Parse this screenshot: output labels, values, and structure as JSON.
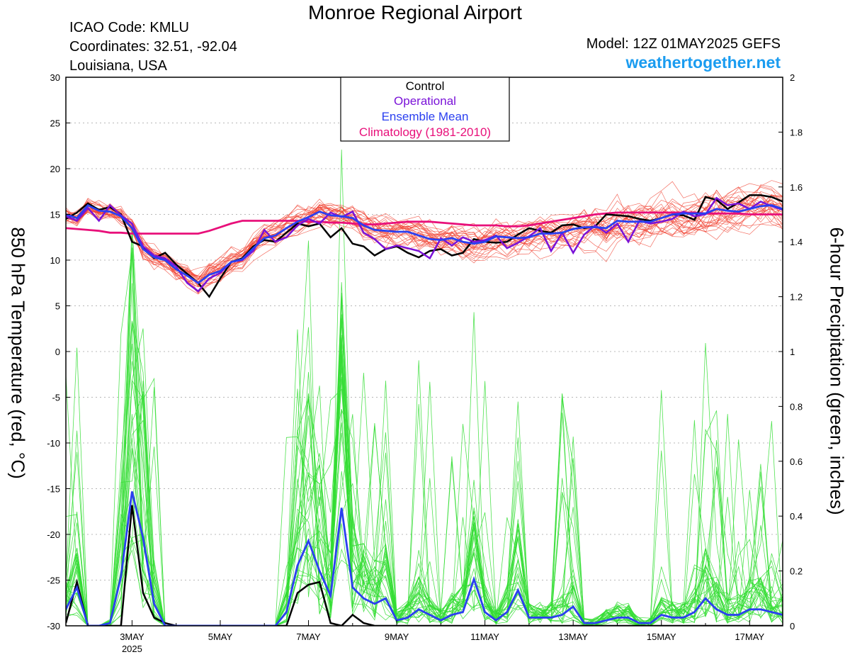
{
  "header": {
    "title": "Monroe Regional Airport",
    "icao": "ICAO Code: KMLU",
    "coords": "Coordinates: 32.51, -92.04",
    "region": "Louisiana, USA",
    "model": "Model: 12Z 01MAY2025 GEFS",
    "site": "weathertogether.net"
  },
  "colors": {
    "control": "#000000",
    "operational": "#7a12d8",
    "ensemble_mean": "#2a3ff0",
    "climatology": "#e8107a",
    "members_temp": "#f04030",
    "members_precip": "#33dd33",
    "site": "#1a9cf0"
  },
  "chart_data": {
    "type": "line",
    "ylabel_left": "850 hPa Temperature (red, °C)",
    "ylabel_right": "6-hour Precipitation (green, inches)",
    "y_left_range": [
      -30,
      30
    ],
    "y_left_ticks": [
      "30",
      "25",
      "20",
      "15",
      "10",
      "5",
      "0",
      "-5",
      "-10",
      "-15",
      "-20",
      "-25",
      "-30"
    ],
    "y_right_range": [
      0,
      2
    ],
    "y_right_ticks": [
      "2",
      "1.8",
      "1.6",
      "1.4",
      "1.2",
      "1",
      "0.8",
      "0.6",
      "0.4",
      "0.2",
      "0"
    ],
    "x_range_days": [
      1.5,
      17.75
    ],
    "x_ticks": [
      {
        "day": 3,
        "label": "3MAY",
        "sub": "2025"
      },
      {
        "day": 5,
        "label": "5MAY",
        "sub": ""
      },
      {
        "day": 7,
        "label": "7MAY",
        "sub": ""
      },
      {
        "day": 9,
        "label": "9MAY",
        "sub": ""
      },
      {
        "day": 11,
        "label": "11MAY",
        "sub": ""
      },
      {
        "day": 13,
        "label": "13MAY",
        "sub": ""
      },
      {
        "day": 15,
        "label": "15MAY",
        "sub": ""
      },
      {
        "day": 17,
        "label": "17MAY",
        "sub": ""
      }
    ],
    "grid": "dotted horizontal",
    "legend": {
      "placement": "top-center",
      "entries": [
        {
          "label": "Control",
          "series": "control"
        },
        {
          "label": "Operational",
          "series": "operational"
        },
        {
          "label": "Ensemble Mean",
          "series": "ensemble_mean"
        },
        {
          "label": "Climatology (1981-2010)",
          "series": "climatology"
        }
      ]
    },
    "temperature": {
      "day": [
        1.5,
        1.75,
        2.0,
        2.25,
        2.5,
        2.75,
        3.0,
        3.25,
        3.5,
        3.75,
        4.0,
        4.25,
        4.5,
        4.75,
        5.0,
        5.25,
        5.5,
        5.75,
        6.0,
        6.25,
        6.5,
        6.75,
        7.0,
        7.25,
        7.5,
        7.75,
        8.0,
        8.25,
        8.5,
        8.75,
        9.0,
        9.25,
        9.5,
        9.75,
        10.0,
        10.25,
        10.5,
        10.75,
        11.0,
        11.25,
        11.5,
        11.75,
        12.0,
        12.25,
        12.5,
        12.75,
        13.0,
        13.25,
        13.5,
        13.75,
        14.0,
        14.25,
        14.5,
        14.75,
        15.0,
        15.25,
        15.5,
        15.75,
        16.0,
        16.25,
        16.5,
        16.75,
        17.0,
        17.25,
        17.5,
        17.75
      ],
      "control": [
        14.5,
        15.2,
        16.2,
        15.5,
        15.8,
        15.0,
        12.0,
        11.5,
        10.2,
        10.8,
        9.5,
        8.5,
        7.5,
        6.0,
        8.0,
        9.8,
        10.2,
        11.5,
        12.2,
        12.0,
        13.0,
        14.0,
        13.7,
        14.0,
        12.5,
        13.5,
        11.8,
        11.5,
        10.5,
        11.2,
        11.5,
        10.8,
        10.3,
        11.0,
        11.2,
        10.5,
        10.8,
        12.3,
        12.0,
        11.9,
        12.0,
        12.8,
        13.5,
        13.2,
        13.0,
        13.8,
        13.9,
        13.5,
        13.7,
        15.0,
        14.9,
        14.8,
        14.5,
        14.3,
        14.6,
        15.0,
        14.9,
        14.4,
        16.9,
        16.6,
        15.6,
        16.3,
        17.1,
        17.1,
        16.9,
        16.4
      ],
      "operational": [
        14.8,
        14.3,
        15.7,
        14.3,
        16.0,
        14.9,
        14.0,
        11.5,
        10.5,
        10.2,
        9.3,
        7.5,
        6.6,
        8.0,
        8.6,
        9.8,
        10.0,
        11.0,
        13.3,
        12.0,
        12.5,
        13.8,
        14.5,
        14.0,
        15.2,
        14.7,
        15.3,
        13.0,
        12.3,
        11.2,
        11.6,
        11.3,
        11.0,
        10.2,
        12.4,
        11.6,
        12.5,
        12.0,
        12.2,
        12.7,
        11.3,
        11.9,
        12.6,
        13.5,
        11.0,
        13.0,
        10.8,
        12.8,
        13.8,
        13.0,
        14.0,
        12.0,
        14.3,
        14.0,
        14.2,
        14.5,
        15.3,
        14.8,
        15.0,
        16.8,
        16.0,
        16.2,
        15.6,
        16.4,
        15.9,
        15.5
      ],
      "ensemble_mean": [
        15.0,
        14.6,
        16.0,
        15.4,
        15.3,
        14.8,
        13.5,
        11.2,
        10.3,
        10.0,
        9.0,
        8.3,
        7.5,
        8.4,
        8.8,
        9.8,
        10.1,
        11.3,
        12.4,
        12.7,
        13.5,
        14.2,
        14.7,
        15.3,
        14.9,
        14.8,
        14.6,
        13.8,
        13.3,
        13.2,
        13.1,
        13.1,
        12.7,
        12.3,
        12.2,
        12.4,
        12.0,
        11.8,
        12.0,
        12.6,
        12.5,
        12.4,
        12.5,
        12.9,
        12.9,
        13.0,
        13.4,
        13.6,
        13.6,
        13.5,
        14.3,
        14.2,
        14.2,
        14.2,
        14.6,
        15.0,
        15.1,
        15.1,
        15.1,
        15.6,
        15.4,
        15.3,
        15.6,
        15.9,
        16.0,
        15.6
      ],
      "climatology": [
        13.5,
        13.4,
        13.3,
        13.2,
        13.0,
        13.0,
        12.9,
        12.9,
        12.9,
        12.9,
        12.9,
        12.9,
        12.9,
        13.2,
        13.6,
        14.0,
        14.3,
        14.3,
        14.3,
        14.3,
        14.3,
        14.3,
        14.2,
        14.2,
        14.1,
        14.1,
        14.0,
        13.9,
        13.9,
        14.0,
        14.1,
        14.2,
        14.2,
        14.2,
        14.1,
        14.0,
        13.9,
        13.8,
        13.8,
        13.8,
        13.7,
        13.7,
        13.8,
        14.0,
        14.2,
        14.4,
        14.6,
        14.8,
        15.0,
        15.1,
        15.2,
        15.2,
        15.2,
        15.2,
        15.2,
        15.2,
        15.2,
        15.2,
        15.1,
        15.1,
        15.1,
        15.1,
        15.0,
        15.0,
        15.0,
        15.0
      ]
    },
    "precipitation": {
      "day": [
        1.5,
        1.75,
        2.0,
        2.25,
        2.5,
        2.75,
        3.0,
        3.25,
        3.5,
        3.75,
        4.0,
        4.25,
        4.5,
        4.75,
        5.0,
        5.25,
        5.5,
        5.75,
        6.0,
        6.25,
        6.5,
        6.75,
        7.0,
        7.25,
        7.5,
        7.75,
        8.0,
        8.25,
        8.5,
        8.75,
        9.0,
        9.25,
        9.5,
        9.75,
        10.0,
        10.25,
        10.5,
        10.75,
        11.0,
        11.25,
        11.5,
        11.75,
        12.0,
        12.25,
        12.5,
        12.75,
        13.0,
        13.25,
        13.5,
        13.75,
        14.0,
        14.25,
        14.5,
        14.75,
        15.0,
        15.25,
        15.5,
        15.75,
        16.0,
        16.25,
        16.5,
        16.75,
        17.0,
        17.25,
        17.5,
        17.75
      ],
      "control": [
        0.01,
        0.16,
        0.0,
        0.0,
        0.0,
        0.0,
        0.44,
        0.12,
        0.03,
        0.01,
        0.0,
        0.0,
        0.0,
        0.0,
        0.0,
        0.0,
        0.0,
        0.0,
        0.0,
        0.0,
        0.0,
        0.12,
        0.15,
        0.16,
        0.01,
        0.0,
        0.04,
        0.01,
        0.0,
        0.0,
        0.0,
        0.0,
        0.0,
        0.0,
        0.0,
        0.0,
        0.0,
        0.0,
        0.0,
        0.0,
        0.0,
        0.0,
        0.0,
        0.0,
        0.0,
        0.0,
        0.0,
        0.0,
        0.0,
        0.0,
        0.0,
        0.0,
        0.0,
        0.0,
        0.0,
        0.0,
        0.0,
        0.0,
        0.0,
        0.0,
        0.0,
        0.0,
        0.0,
        0.0,
        0.0,
        0.0
      ],
      "ensemble_mean": [
        0.06,
        0.14,
        0.0,
        0.0,
        0.01,
        0.18,
        0.49,
        0.32,
        0.08,
        0.0,
        0.0,
        0.0,
        0.0,
        0.0,
        0.0,
        0.0,
        0.0,
        0.0,
        0.0,
        0.0,
        0.05,
        0.22,
        0.31,
        0.2,
        0.11,
        0.43,
        0.14,
        0.1,
        0.08,
        0.1,
        0.02,
        0.03,
        0.06,
        0.04,
        0.02,
        0.04,
        0.05,
        0.17,
        0.05,
        0.02,
        0.05,
        0.13,
        0.03,
        0.03,
        0.03,
        0.04,
        0.07,
        0.01,
        0.01,
        0.02,
        0.03,
        0.03,
        0.01,
        0.01,
        0.04,
        0.03,
        0.03,
        0.05,
        0.1,
        0.06,
        0.04,
        0.04,
        0.06,
        0.06,
        0.05,
        0.04
      ]
    }
  }
}
